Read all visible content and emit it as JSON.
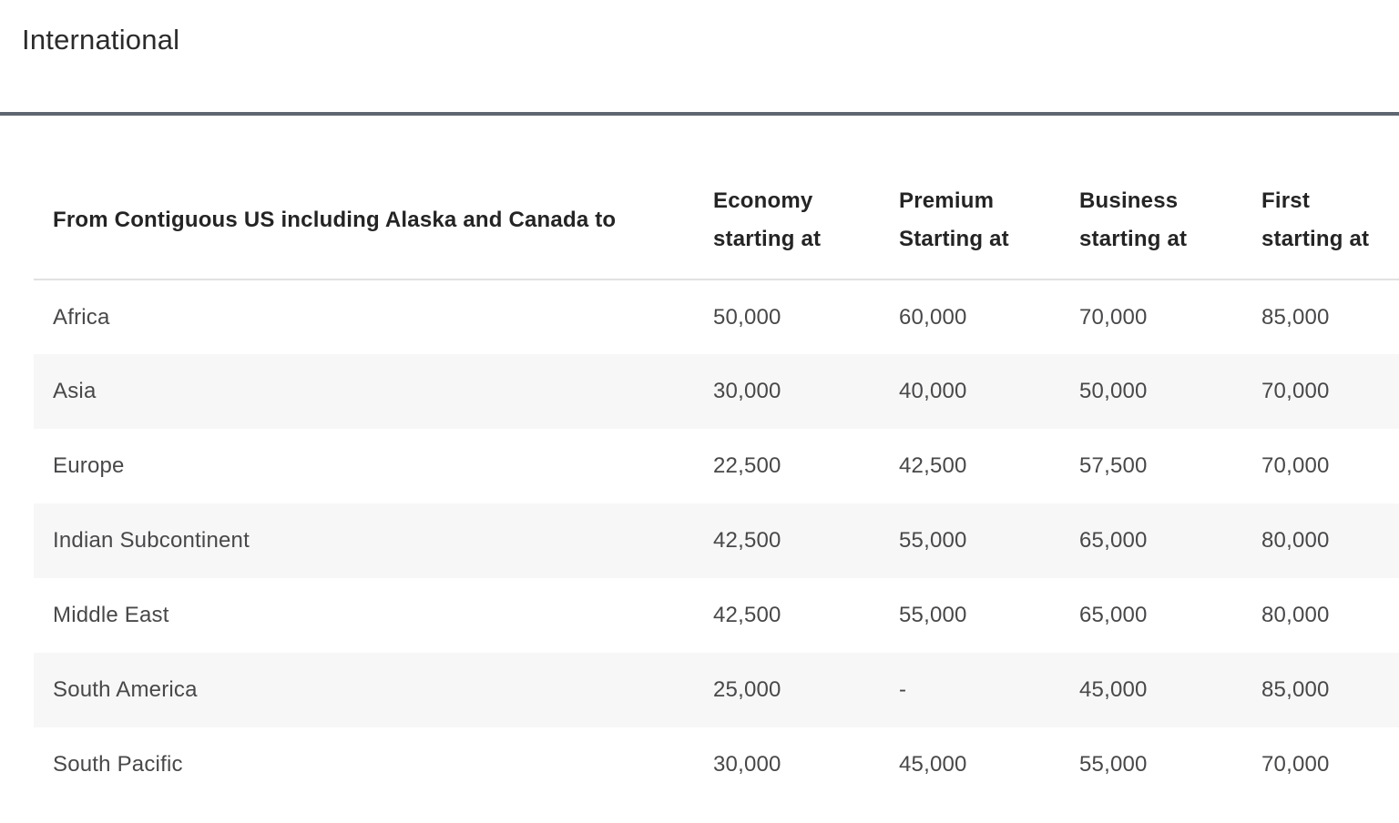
{
  "page": {
    "heading": "International"
  },
  "colors": {
    "heading_text": "#2b2b2b",
    "divider": "#5e6671",
    "header_text": "#242424",
    "body_text": "#48484a",
    "alt_row_bg": "#f7f7f7",
    "header_border": "#e1e1e1"
  },
  "table": {
    "region_column_header": "From Contiguous US including Alaska and Canada to",
    "value_columns": [
      {
        "line1": "Economy",
        "line2": "starting at"
      },
      {
        "line1": "Premium",
        "line2": "Starting at"
      },
      {
        "line1": "Business",
        "line2": "starting at"
      },
      {
        "line1": "First",
        "line2": "starting at"
      }
    ],
    "rows": [
      {
        "region": "Africa",
        "values": [
          "50,000",
          "60,000",
          "70,000",
          "85,000"
        ]
      },
      {
        "region": "Asia",
        "values": [
          "30,000",
          "40,000",
          "50,000",
          "70,000"
        ]
      },
      {
        "region": "Europe",
        "values": [
          "22,500",
          "42,500",
          "57,500",
          "70,000"
        ]
      },
      {
        "region": "Indian Subcontinent",
        "values": [
          "42,500",
          "55,000",
          "65,000",
          "80,000"
        ]
      },
      {
        "region": "Middle East",
        "values": [
          "42,500",
          "55,000",
          "65,000",
          "80,000"
        ]
      },
      {
        "region": "South America",
        "values": [
          "25,000",
          "-",
          "45,000",
          "85,000"
        ]
      },
      {
        "region": "South Pacific",
        "values": [
          "30,000",
          "45,000",
          "55,000",
          "70,000"
        ]
      }
    ]
  }
}
